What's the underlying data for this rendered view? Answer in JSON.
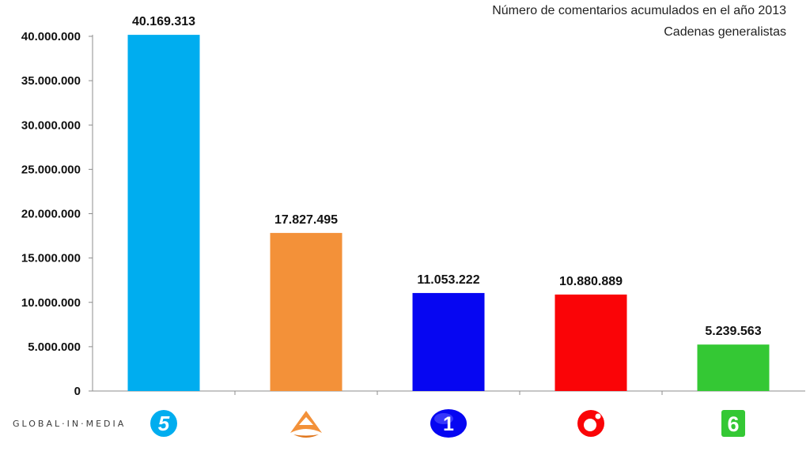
{
  "title": "Número de comentarios acumulados en el año 2013",
  "subtitle": "Cadenas generalistas",
  "watermark": "GLOBAL·IN·MEDIA",
  "chart_data": {
    "type": "bar",
    "title": "Número de comentarios acumulados en el año 2013",
    "subtitle": "Cadenas generalistas",
    "categories": [
      "5",
      "A",
      "1",
      "O",
      "6"
    ],
    "category_icons": [
      "telecinco-logo-icon",
      "antena3-logo-icon",
      "la1-logo-icon",
      "cuatro-logo-icon",
      "lasexta-logo-icon"
    ],
    "values": [
      40169313,
      17827495,
      11053222,
      10880889,
      5239563
    ],
    "value_labels": [
      "40.169.313",
      "17.827.495",
      "11.053.222",
      "10.880.889",
      "5.239.563"
    ],
    "colors": [
      "#00adef",
      "#f39139",
      "#0606f2",
      "#fa0407",
      "#34c834"
    ],
    "ylim": [
      0,
      40000000
    ],
    "yticks": [
      0,
      5000000,
      10000000,
      15000000,
      20000000,
      25000000,
      30000000,
      35000000,
      40000000
    ],
    "ytick_labels": [
      "0",
      "5.000.000",
      "10.000.000",
      "15.000.000",
      "20.000.000",
      "25.000.000",
      "30.000.000",
      "35.000.000",
      "40.000.000"
    ],
    "grid": false,
    "legend": "none",
    "xlabel": "",
    "ylabel": ""
  }
}
